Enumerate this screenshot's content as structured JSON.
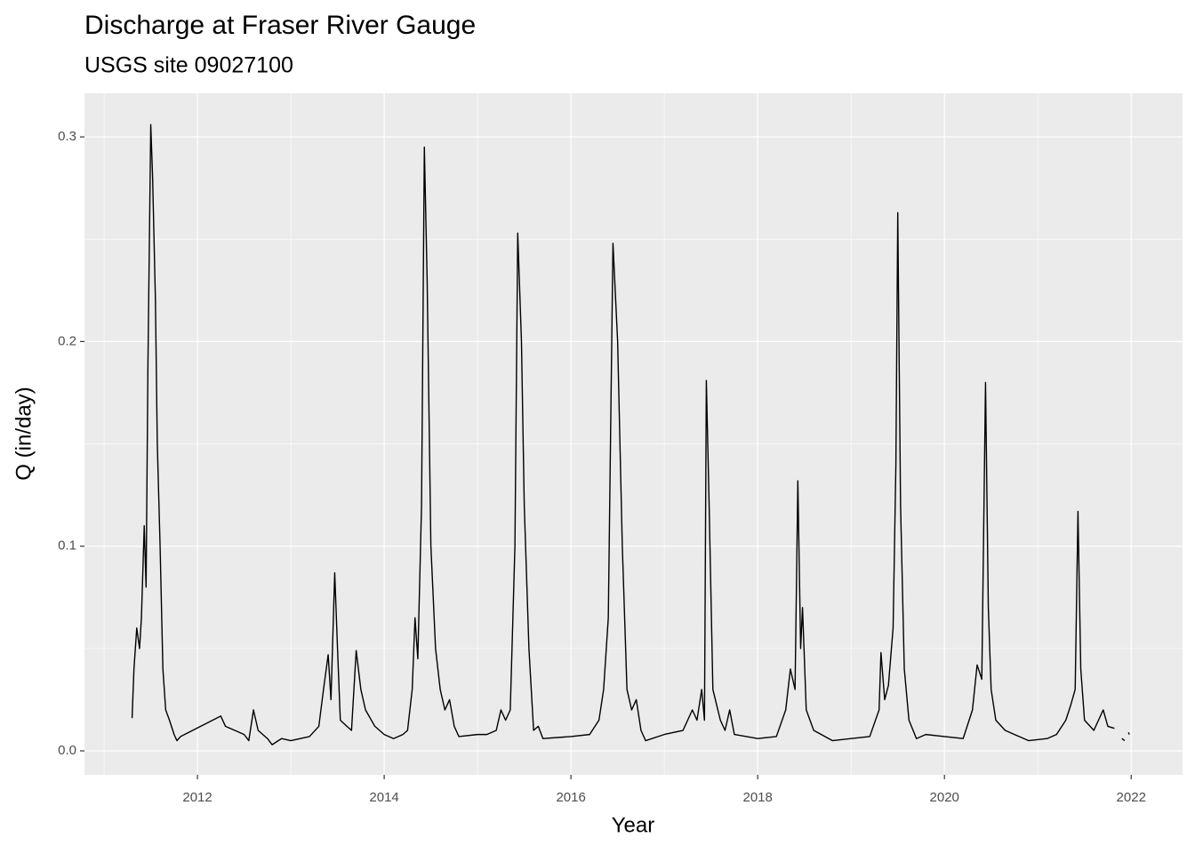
{
  "chart_data": {
    "type": "line",
    "title": "Discharge at Fraser River Gauge",
    "subtitle": "USGS site 09027100",
    "x_label": "Year",
    "y_label": "Q (in/day)",
    "color": "#000000",
    "grid": true,
    "xlim": [
      2010.79,
      2022.55
    ],
    "ylim": [
      -0.0117,
      0.3213
    ],
    "xticks": [
      2012,
      2014,
      2016,
      2018,
      2020,
      2022
    ],
    "yticks": [
      {
        "value": 0,
        "label": "0.0"
      },
      0.1,
      0.2,
      0.3
    ],
    "x_minor_ticks": [
      2011,
      2013,
      2015,
      2017,
      2019,
      2021
    ],
    "y_minor_ticks": [
      0.05,
      0.15,
      0.25
    ],
    "x": [
      2011.3,
      2011.32,
      2011.35,
      2011.38,
      2011.4,
      2011.43,
      2011.45,
      2011.47,
      2011.5,
      2011.52,
      2011.55,
      2011.57,
      2011.6,
      2011.63,
      2011.66,
      2011.7,
      2011.75,
      2011.78,
      2011.82,
      2012.25,
      2012.3,
      2012.4,
      2012.5,
      2012.55,
      2012.6,
      2012.65,
      2012.75,
      2012.8,
      2012.9,
      2013.0,
      2013.2,
      2013.3,
      2013.35,
      2013.4,
      2013.43,
      2013.47,
      2013.5,
      2013.53,
      2013.6,
      2013.65,
      2013.7,
      2013.75,
      2013.8,
      2013.9,
      2014.0,
      2014.1,
      2014.2,
      2014.25,
      2014.3,
      2014.33,
      2014.36,
      2014.4,
      2014.43,
      2014.46,
      2014.5,
      2014.55,
      2014.6,
      2014.65,
      2014.7,
      2014.75,
      2014.8,
      2015.0,
      2015.1,
      2015.2,
      2015.25,
      2015.3,
      2015.35,
      2015.4,
      2015.43,
      2015.47,
      2015.5,
      2015.55,
      2015.6,
      2015.65,
      2015.7,
      2016.0,
      2016.2,
      2016.3,
      2016.35,
      2016.4,
      2016.45,
      2016.5,
      2016.55,
      2016.6,
      2016.65,
      2016.7,
      2016.75,
      2016.8,
      2017.0,
      2017.2,
      2017.3,
      2017.35,
      2017.4,
      2017.43,
      2017.45,
      2017.48,
      2017.52,
      2017.6,
      2017.65,
      2017.7,
      2017.75,
      2018.0,
      2018.2,
      2018.3,
      2018.35,
      2018.4,
      2018.43,
      2018.46,
      2018.48,
      2018.52,
      2018.6,
      2018.8,
      2019.0,
      2019.2,
      2019.3,
      2019.32,
      2019.36,
      2019.4,
      2019.45,
      2019.48,
      2019.5,
      2019.53,
      2019.57,
      2019.62,
      2019.7,
      2019.8,
      2020.0,
      2020.2,
      2020.3,
      2020.35,
      2020.4,
      2020.44,
      2020.47,
      2020.5,
      2020.55,
      2020.65,
      2020.9,
      2021.1,
      2021.2,
      2021.3,
      2021.35,
      2021.4,
      2021.43,
      2021.46,
      2021.5,
      2021.6,
      2021.7,
      2021.75,
      2021.82,
      2021.86,
      2021.9,
      2021.93,
      2021.95,
      2021.97,
      2021.98
    ],
    "values": [
      0.016,
      0.04,
      0.06,
      0.05,
      0.065,
      0.11,
      0.08,
      0.19,
      0.306,
      0.28,
      0.22,
      0.15,
      0.1,
      0.04,
      0.02,
      0.015,
      0.008,
      0.005,
      0.007,
      0.017,
      0.012,
      0.01,
      0.008,
      0.005,
      0.02,
      0.01,
      0.006,
      0.003,
      0.006,
      0.005,
      0.007,
      0.012,
      0.03,
      0.047,
      0.025,
      0.087,
      0.05,
      0.015,
      0.012,
      0.01,
      0.049,
      0.03,
      0.02,
      0.012,
      0.008,
      0.006,
      0.008,
      0.01,
      0.03,
      0.065,
      0.045,
      0.12,
      0.295,
      0.23,
      0.1,
      0.05,
      0.03,
      0.02,
      0.025,
      0.012,
      0.007,
      0.008,
      0.008,
      0.01,
      0.02,
      0.015,
      0.02,
      0.1,
      0.253,
      0.2,
      0.12,
      0.05,
      0.01,
      0.012,
      0.006,
      0.007,
      0.008,
      0.015,
      0.03,
      0.065,
      0.248,
      0.2,
      0.1,
      0.03,
      0.02,
      0.025,
      0.01,
      0.005,
      0.008,
      0.01,
      0.02,
      0.015,
      0.03,
      0.015,
      0.181,
      0.12,
      0.03,
      0.015,
      0.01,
      0.02,
      0.008,
      0.006,
      0.007,
      0.02,
      0.04,
      0.03,
      0.132,
      0.05,
      0.07,
      0.02,
      0.01,
      0.005,
      0.006,
      0.007,
      0.02,
      0.048,
      0.025,
      0.032,
      0.06,
      0.14,
      0.263,
      0.12,
      0.04,
      0.015,
      0.006,
      0.008,
      0.007,
      0.006,
      0.02,
      0.042,
      0.035,
      0.18,
      0.07,
      0.03,
      0.015,
      0.01,
      0.005,
      0.006,
      0.008,
      0.015,
      0.022,
      0.03,
      0.117,
      0.04,
      0.015,
      0.01,
      0.02,
      0.012,
      0.011,
      null,
      0.006,
      0.005,
      null,
      0.009,
      0.008
    ]
  }
}
